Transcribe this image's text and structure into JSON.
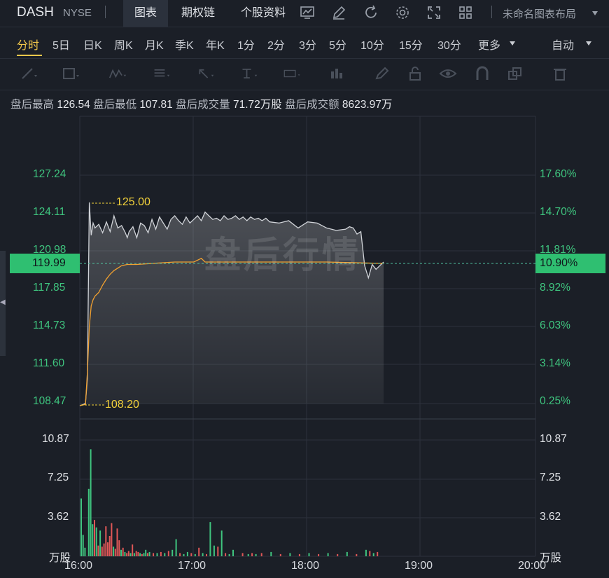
{
  "header": {
    "symbol": "DASH",
    "exchange": "NYSE",
    "tabs": [
      "图表",
      "期权链",
      "个股资料"
    ],
    "active_tab": "图表",
    "layout_label": "未命名图表布局",
    "icons": [
      "trend-chart-icon",
      "draw-pen-icon",
      "refresh-icon",
      "settings-gear-icon",
      "fullscreen-icon",
      "grid-layout-icon"
    ]
  },
  "periods": {
    "items": [
      "分时",
      "5日",
      "日K",
      "周K",
      "月K",
      "季K",
      "年K",
      "1分",
      "2分",
      "3分",
      "5分",
      "10分",
      "15分",
      "30分",
      "更多"
    ],
    "active": "分时",
    "mode": "自动"
  },
  "drawing_tools": [
    "line-tool-icon",
    "rectangle-tool-icon",
    "wave-pattern-icon",
    "fibonacci-icon",
    "arrow-tool-icon",
    "price-range-icon",
    "text-annotation-icon",
    "bar-pattern-icon",
    "brush-icon",
    "lock-icon",
    "eye-icon",
    "magnet-icon",
    "copy-icon",
    "trash-icon"
  ],
  "stats": {
    "high_label": "盘后最高",
    "high": "126.54",
    "low_label": "盘后最低",
    "low": "107.81",
    "volume_label": "盘后成交量",
    "volume": "71.72万股",
    "turnover_label": "盘后成交额",
    "turnover": "8623.97万"
  },
  "watermark": "盘后行情",
  "current": {
    "price": "119.99",
    "pct": "10.90%"
  },
  "colors": {
    "up": "#3fc57f",
    "down": "#e05757",
    "avg_line": "#f0a030",
    "annotation": "#f2d13b",
    "price_line": "#d0d3d8"
  },
  "chart_data": {
    "type": "line",
    "price_axis": {
      "ticks": [
        "127.24",
        "124.11",
        "120.98",
        "117.85",
        "114.73",
        "111.60",
        "108.47"
      ],
      "pct_ticks": [
        "17.60%",
        "14.70%",
        "11.81%",
        "8.92%",
        "6.03%",
        "3.14%",
        "0.25%"
      ],
      "range": [
        108.47,
        127.24
      ]
    },
    "volume_axis": {
      "ticks": [
        "10.87",
        "7.25",
        "3.62"
      ],
      "unit": "万股",
      "range": [
        0,
        10.87
      ]
    },
    "x_ticks": [
      "16:00",
      "17:00",
      "18:00",
      "19:00",
      "20:00"
    ],
    "x_range_minutes": [
      0,
      240
    ],
    "annotations": {
      "high": "125.00",
      "low": "108.20"
    },
    "series": [
      {
        "x": [
          0,
          2,
          3,
          4,
          5,
          6,
          7,
          8,
          10,
          12,
          14,
          16,
          18,
          20,
          22,
          24,
          25,
          26,
          28,
          30,
          32,
          34,
          36,
          38,
          40,
          42,
          44,
          46,
          48,
          50,
          52,
          54,
          56,
          58,
          60,
          62,
          64,
          66,
          68,
          70,
          72,
          74,
          76,
          78,
          80,
          82,
          84,
          86,
          88,
          90,
          92,
          94,
          96,
          98,
          100,
          105,
          110,
          115,
          120,
          125,
          130,
          135,
          140,
          142,
          144,
          146,
          148,
          150,
          152,
          154,
          156,
          158,
          160
        ],
        "y": [
          108.3,
          108.4,
          108.5,
          110.5,
          125.0,
          122.3,
          123.3,
          122.9,
          123.2,
          122.5,
          123.4,
          122.6,
          123.9,
          122.9,
          123.1,
          122.5,
          122.1,
          122.6,
          123.0,
          122.1,
          123.3,
          123.1,
          122.5,
          123.6,
          122.8,
          123.8,
          123.3,
          122.8,
          123.6,
          123.9,
          123.5,
          123.2,
          123.8,
          123.3,
          123.6,
          123.9,
          123.5,
          124.2,
          123.9,
          123.6,
          123.7,
          123.5,
          123.9,
          123.6,
          123.7,
          123.9,
          123.6,
          123.8,
          123.5,
          123.8,
          123.6,
          123.7,
          123.5,
          123.7,
          123.4,
          123.3,
          123.5,
          122.9,
          123.4,
          123.3,
          122.9,
          122.7,
          122.8,
          123.0,
          122.9,
          122.4,
          122.6,
          119.8,
          118.8,
          119.9,
          119.5,
          119.8,
          120.1
        ]
      },
      {
        "x": [
          0,
          3,
          4,
          5,
          6,
          7,
          8,
          10,
          12,
          14,
          16,
          18,
          20,
          22,
          25,
          30,
          40,
          50,
          60,
          64,
          66,
          70,
          80,
          100,
          130,
          155,
          160
        ],
        "y": [
          108.3,
          108.4,
          111.0,
          114.8,
          116.5,
          117.0,
          117.3,
          117.6,
          118.2,
          118.7,
          119.1,
          119.4,
          119.6,
          119.8,
          119.9,
          119.9,
          120.0,
          120.1,
          120.1,
          120.4,
          120.1,
          120.1,
          120.1,
          120.1,
          120.1,
          120.0,
          120.0
        ]
      }
    ],
    "volume_bars": {
      "x": [
        0,
        1,
        2,
        4,
        5,
        6,
        7,
        8,
        9,
        10,
        11,
        12,
        13,
        14,
        15,
        16,
        17,
        18,
        19,
        20,
        21,
        22,
        23,
        24,
        25,
        26,
        27,
        28,
        29,
        30,
        31,
        32,
        33,
        34,
        35,
        36,
        38,
        40,
        42,
        44,
        46,
        48,
        50,
        52,
        54,
        56,
        58,
        60,
        62,
        64,
        66,
        68,
        70,
        72,
        74,
        76,
        78,
        80,
        85,
        88,
        90,
        92,
        95,
        100,
        105,
        110,
        115,
        120,
        125,
        130,
        135,
        140,
        145,
        150,
        152,
        154,
        156
      ],
      "v": [
        5.4,
        2.0,
        0.8,
        6.3,
        10.0,
        3.0,
        3.4,
        2.7,
        1.0,
        2.4,
        0.9,
        1.2,
        2.8,
        1.3,
        1.9,
        3.1,
        0.9,
        0.7,
        2.6,
        1.5,
        0.6,
        0.8,
        0.4,
        0.3,
        0.5,
        0.3,
        1.1,
        0.3,
        0.5,
        0.4,
        0.3,
        0.2,
        0.3,
        0.6,
        0.3,
        0.4,
        0.3,
        0.3,
        0.4,
        0.3,
        0.5,
        0.6,
        1.6,
        0.3,
        0.2,
        0.4,
        0.3,
        0.2,
        0.8,
        0.3,
        0.2,
        3.2,
        1.0,
        0.9,
        2.4,
        0.3,
        0.2,
        0.6,
        0.3,
        0.2,
        0.3,
        0.2,
        0.3,
        0.4,
        0.2,
        0.3,
        0.2,
        0.3,
        0.2,
        0.3,
        0.2,
        0.4,
        0.2,
        0.6,
        0.5,
        0.3,
        0.4
      ],
      "dir": [
        "u",
        "u",
        "u",
        "u",
        "u",
        "u",
        "d",
        "u",
        "d",
        "u",
        "d",
        "d",
        "d",
        "d",
        "d",
        "d",
        "u",
        "d",
        "d",
        "d",
        "u",
        "d",
        "u",
        "d",
        "d",
        "u",
        "d",
        "u",
        "d",
        "d",
        "u",
        "d",
        "u",
        "u",
        "d",
        "u",
        "d",
        "u",
        "d",
        "u",
        "d",
        "u",
        "u",
        "d",
        "u",
        "u",
        "d",
        "u",
        "d",
        "u",
        "d",
        "u",
        "u",
        "d",
        "u",
        "d",
        "u",
        "u",
        "d",
        "u",
        "d",
        "u",
        "d",
        "u",
        "d",
        "u",
        "d",
        "u",
        "d",
        "u",
        "d",
        "u",
        "d",
        "u",
        "d",
        "u",
        "d"
      ]
    }
  }
}
